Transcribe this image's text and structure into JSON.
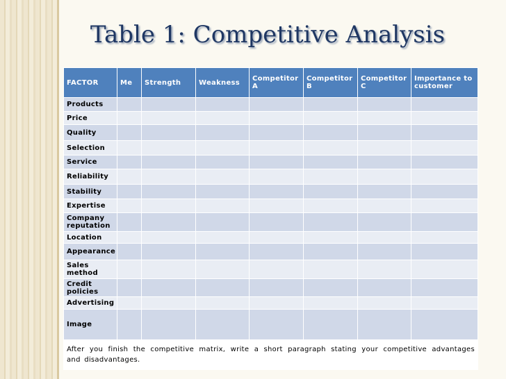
{
  "title": "Table 1: Competitive Analysis",
  "table": {
    "headers": [
      "FACTOR",
      "Me",
      "Strength",
      "Weakness",
      "Competitor A",
      "Competitor B",
      "Competitor C",
      "Importance to customer"
    ],
    "rows": [
      "Products",
      "Price",
      "Quality",
      "Selection",
      "Service",
      "Reliability",
      "Stability",
      "Expertise",
      "Company reputation",
      "Location",
      "Appearance",
      "Sales method",
      "Credit policies",
      "Advertising",
      "Image"
    ]
  },
  "footer": "After you finish the competitive matrix, write a short paragraph stating your competitive advantages and disadvantages."
}
